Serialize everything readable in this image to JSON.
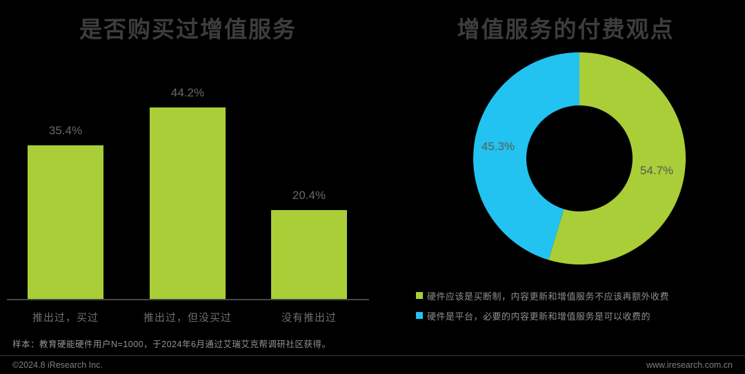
{
  "page": {
    "background": "#000000",
    "footer": {
      "sample_note": "样本：教育硬能硬件用户N=1000，于2024年6月通过艾瑞艾克帮调研社区获得。",
      "copyright": "©2024.8 iResearch Inc.",
      "website": "www.iresearch.com.cn"
    }
  },
  "colors": {
    "green": "#a9ce38",
    "blue": "#22c3f0",
    "title_gray": "#3d3d3d",
    "value_label_gray": "#696969",
    "axis_gray": "#464646",
    "legend_text_gray": "#8f8f8f"
  },
  "chart_data": [
    {
      "type": "bar",
      "title": "是否购买过增值服务",
      "categories": [
        "推出过，买过",
        "推出过，但没买过",
        "没有推出过"
      ],
      "values": [
        35.4,
        44.2,
        20.4
      ],
      "value_labels": [
        "35.4%",
        "44.2%",
        "20.4%"
      ],
      "unit": "%",
      "bar_color": "#a9ce38",
      "xlabel": "",
      "ylabel": "",
      "ylim": [
        0,
        50
      ],
      "grid": false,
      "axis_shown": "x-only"
    },
    {
      "type": "pie",
      "subtype": "donut",
      "title": "增值服务的付费观点",
      "slices": [
        {
          "label": "硬件应该是买断制，内容更新和增值服务不应该再额外收费",
          "value": 54.7,
          "value_label": "54.7%",
          "color": "#a9ce38"
        },
        {
          "label": "硬件是平台，必要的内容更新和增值服务是可以收费的",
          "value": 45.3,
          "value_label": "45.3%",
          "color": "#22c3f0"
        }
      ],
      "start_angle_deg": 0,
      "direction": "clockwise",
      "legend_position": "bottom",
      "grid": false
    }
  ]
}
